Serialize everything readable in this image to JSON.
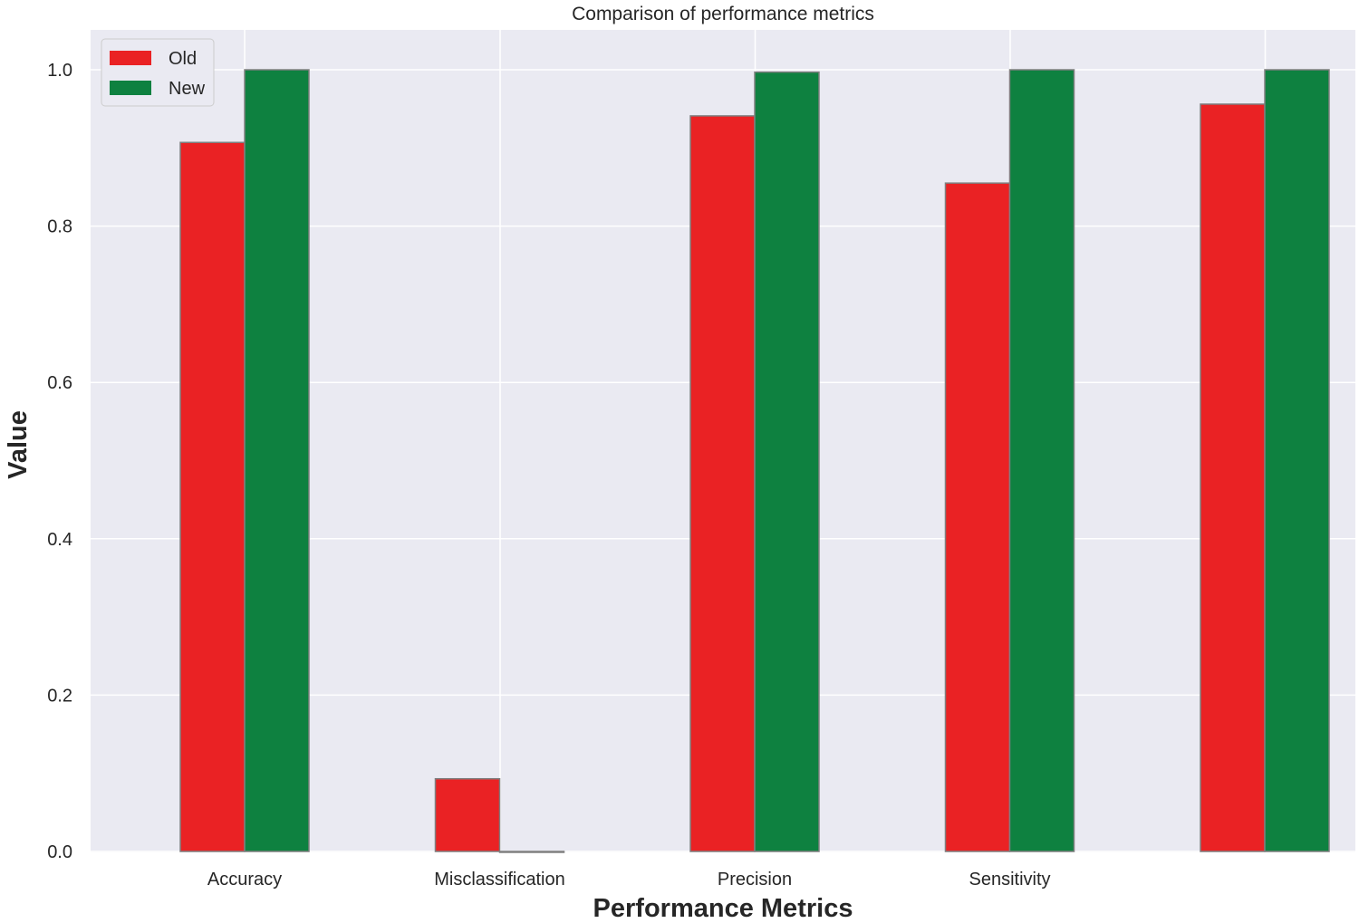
{
  "chart_data": {
    "type": "bar",
    "title": "Comparison of performance metrics",
    "xlabel": "Performance Metrics",
    "ylabel": "Value",
    "categories": [
      "Accuracy",
      "Misclassification",
      "Precision",
      "Sensitivity",
      ""
    ],
    "series": [
      {
        "name": "Old",
        "color": "#ea2224",
        "values": [
          0.907,
          0.093,
          0.941,
          0.855,
          0.956
        ]
      },
      {
        "name": "New",
        "color": "#0e8140",
        "values": [
          1.0,
          0.0,
          0.997,
          1.0,
          1.0
        ]
      }
    ],
    "ylim": [
      0,
      1.05
    ],
    "yticks": [
      0.0,
      0.2,
      0.4,
      0.6,
      0.8,
      1.0
    ],
    "ytick_labels": [
      "0.0",
      "0.2",
      "0.4",
      "0.6",
      "0.8",
      "1.0"
    ],
    "grid": true,
    "legend_position": "top-left",
    "background": "#eaeaf2",
    "grid_color": "#ffffff",
    "edge_color": "#7f7f7f"
  }
}
